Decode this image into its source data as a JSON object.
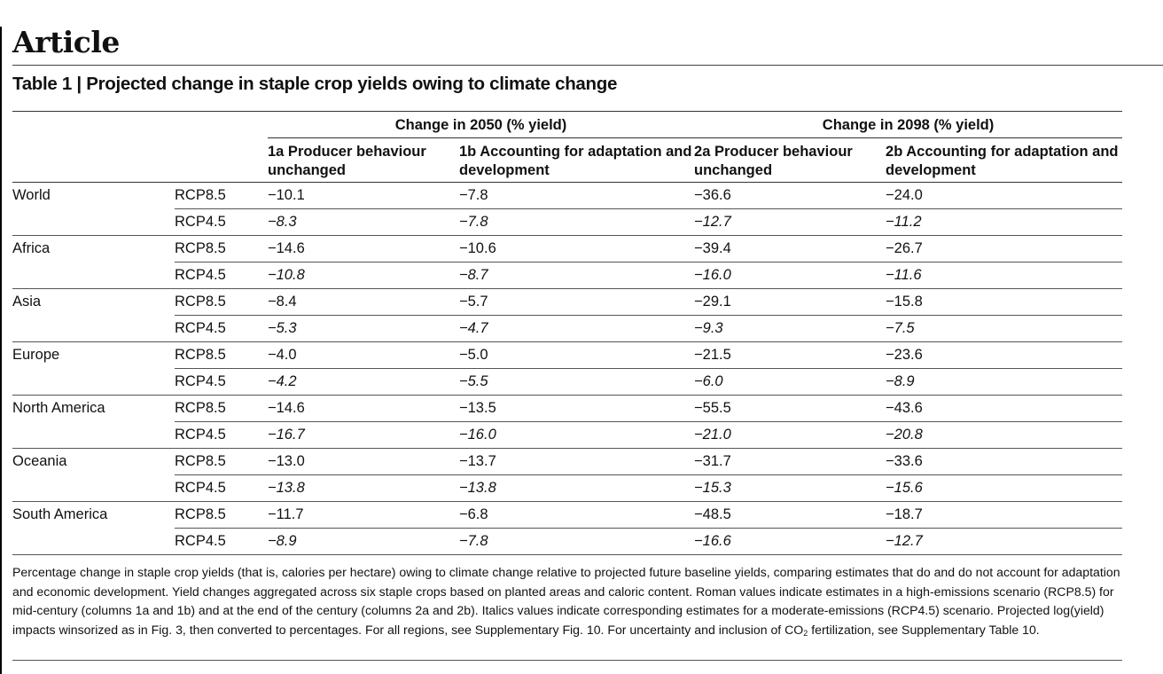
{
  "article_label": "Article",
  "table_title": "Table 1 | Projected change in staple crop yields owing to climate change",
  "groups": {
    "g2050": "Change in 2050 (% yield)",
    "g2098": "Change in 2098 (% yield)"
  },
  "columns": {
    "c1a": "1a Producer behaviour unchanged",
    "c1b": "1b Accounting for adaptation and development",
    "c2a": "2a Producer behaviour unchanged",
    "c2b": "2b Accounting for adaptation and development"
  },
  "rows": [
    {
      "region": "World",
      "scenario": "RCP8.5",
      "c1a": "−10.1",
      "c1b": "−7.8",
      "c2a": "−36.6",
      "c2b": "−24.0"
    },
    {
      "region": "",
      "scenario": "RCP4.5",
      "c1a": "−8.3",
      "c1b": "−7.8",
      "c2a": "−12.7",
      "c2b": "−11.2"
    },
    {
      "region": "Africa",
      "scenario": "RCP8.5",
      "c1a": "−14.6",
      "c1b": "−10.6",
      "c2a": "−39.4",
      "c2b": "−26.7"
    },
    {
      "region": "",
      "scenario": "RCP4.5",
      "c1a": "−10.8",
      "c1b": "−8.7",
      "c2a": "−16.0",
      "c2b": "−11.6"
    },
    {
      "region": "Asia",
      "scenario": "RCP8.5",
      "c1a": "−8.4",
      "c1b": "−5.7",
      "c2a": "−29.1",
      "c2b": "−15.8"
    },
    {
      "region": "",
      "scenario": "RCP4.5",
      "c1a": "−5.3",
      "c1b": "−4.7",
      "c2a": "−9.3",
      "c2b": "−7.5"
    },
    {
      "region": "Europe",
      "scenario": "RCP8.5",
      "c1a": "−4.0",
      "c1b": "−5.0",
      "c2a": "−21.5",
      "c2b": "−23.6"
    },
    {
      "region": "",
      "scenario": "RCP4.5",
      "c1a": "−4.2",
      "c1b": "−5.5",
      "c2a": "−6.0",
      "c2b": "−8.9"
    },
    {
      "region": "North America",
      "scenario": "RCP8.5",
      "c1a": "−14.6",
      "c1b": "−13.5",
      "c2a": "−55.5",
      "c2b": "−43.6"
    },
    {
      "region": "",
      "scenario": "RCP4.5",
      "c1a": "−16.7",
      "c1b": "−16.0",
      "c2a": "−21.0",
      "c2b": "−20.8"
    },
    {
      "region": "Oceania",
      "scenario": "RCP8.5",
      "c1a": "−13.0",
      "c1b": "−13.7",
      "c2a": "−31.7",
      "c2b": "−33.6"
    },
    {
      "region": "",
      "scenario": "RCP4.5",
      "c1a": "−13.8",
      "c1b": "−13.8",
      "c2a": "−15.3",
      "c2b": "−15.6"
    },
    {
      "region": "South America",
      "scenario": "RCP8.5",
      "c1a": "−11.7",
      "c1b": "−6.8",
      "c2a": "−48.5",
      "c2b": "−18.7"
    },
    {
      "region": "",
      "scenario": "RCP4.5",
      "c1a": "−8.9",
      "c1b": "−7.8",
      "c2a": "−16.6",
      "c2b": "−12.7"
    }
  ],
  "footnote": {
    "before_sub": "Percentage change in staple crop yields (that is, calories per hectare) owing to climate change relative to projected future baseline yields, comparing estimates that do and do not account for adaptation and economic development. Yield changes aggregated across six staple crops based on planted areas and caloric content. Roman values indicate estimates in a high-emissions scenario (RCP8.5) for mid-century (columns 1a and 1b) and at the end of the century (columns 2a and 2b). Italics values indicate corresponding estimates for a moderate-emissions (RCP4.5) scenario. Projected log(yield) impacts winsorized as in Fig. 3, then converted to percentages. For all regions, see Supplementary Fig. 10. For uncertainty and inclusion of CO",
    "sub": "2",
    "after_sub": " fertilization, see Supplementary Table 10."
  }
}
